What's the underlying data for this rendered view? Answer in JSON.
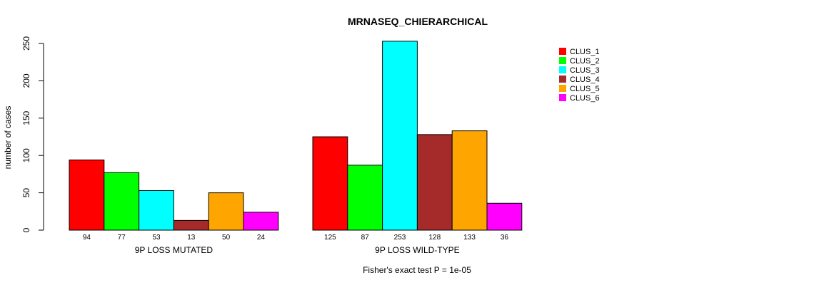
{
  "chart_data": {
    "type": "bar",
    "title": "MRNASEQ_CHIERARCHICAL",
    "ylabel": "number of cases",
    "footer": "Fisher's exact test P = 1e-05",
    "ylim": [
      0,
      250
    ],
    "yticks": [
      0,
      50,
      100,
      150,
      200,
      250
    ],
    "grid": false,
    "legend_position": "top-right",
    "groups": [
      "9P LOSS MUTATED",
      "9P LOSS WILD-TYPE"
    ],
    "series": [
      {
        "name": "CLUS_1",
        "color": "#ff0000",
        "values": [
          94,
          125
        ]
      },
      {
        "name": "CLUS_2",
        "color": "#00ff00",
        "values": [
          77,
          87
        ]
      },
      {
        "name": "CLUS_3",
        "color": "#00ffff",
        "values": [
          53,
          253
        ]
      },
      {
        "name": "CLUS_4",
        "color": "#a52a2a",
        "values": [
          13,
          128
        ]
      },
      {
        "name": "CLUS_5",
        "color": "#ffa500",
        "values": [
          50,
          133
        ]
      },
      {
        "name": "CLUS_6",
        "color": "#ff00ff",
        "values": [
          24,
          36
        ]
      }
    ]
  }
}
